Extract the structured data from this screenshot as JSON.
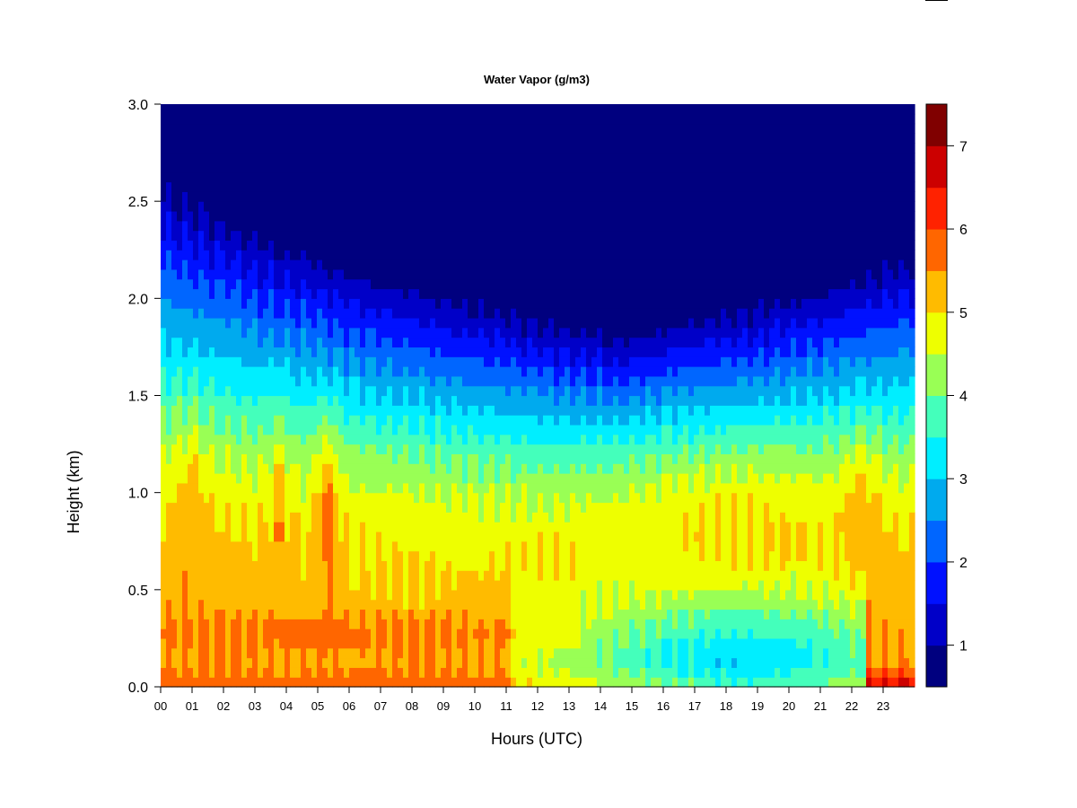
{
  "chart_data": {
    "type": "heatmap",
    "title": "Water Vapor (g/m3)",
    "xlabel": "Hours (UTC)",
    "ylabel": "Height (km)",
    "x_range": [
      0,
      24
    ],
    "y_range": [
      0.0,
      3.0
    ],
    "x_ticks": [
      "00",
      "01",
      "02",
      "03",
      "04",
      "05",
      "06",
      "07",
      "08",
      "09",
      "10",
      "11",
      "12",
      "13",
      "14",
      "15",
      "16",
      "17",
      "18",
      "19",
      "20",
      "21",
      "22",
      "23"
    ],
    "y_ticks": [
      "0.0",
      "0.5",
      "1.0",
      "1.5",
      "2.0",
      "2.5",
      "3.0"
    ],
    "colorbar": {
      "range": [
        0.5,
        7.5
      ],
      "ticks": [
        "1",
        "2",
        "3",
        "4",
        "5",
        "6",
        "7"
      ],
      "levels": [
        0.5,
        1.0,
        1.5,
        2.0,
        2.5,
        3.0,
        3.5,
        4.0,
        4.5,
        5.0,
        5.5,
        6.0,
        6.5,
        7.0,
        7.5
      ],
      "colors": [
        "#00007f",
        "#0000c8",
        "#0011ff",
        "#0066ff",
        "#00aaee",
        "#00eeff",
        "#44ffbb",
        "#99ff55",
        "#eeff00",
        "#ffbb00",
        "#ff6600",
        "#ff2200",
        "#cc0000",
        "#800000"
      ]
    },
    "grid": false,
    "legend": "colorbar-right",
    "field_description": {
      "wet_layer_heights_km": [
        0.8,
        1.2
      ],
      "peak_wet_hours": [
        5.3,
        16.3,
        18.8,
        22.3
      ],
      "dry_top_center_hour": 14.5,
      "surface_moist_hours": [
        22.5,
        24.0
      ]
    }
  }
}
